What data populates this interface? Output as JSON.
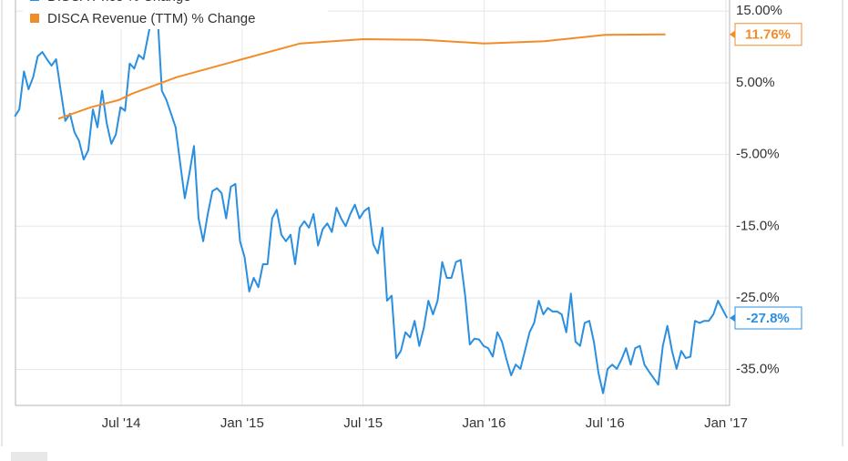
{
  "chart_data": {
    "type": "line",
    "ylim": [
      -40,
      16.56
    ],
    "yticks": [
      {
        "value": 15,
        "label": "15.00%"
      },
      {
        "value": 5,
        "label": "5.00%"
      },
      {
        "value": -5,
        "label": "-5.00%"
      },
      {
        "value": -15,
        "label": "-15.0%"
      },
      {
        "value": -25,
        "label": "-25.0%"
      },
      {
        "value": -35,
        "label": "-35.0%"
      }
    ],
    "xlim": [
      2014.063,
      2017.015
    ],
    "xticks": [
      {
        "value": 2014.5,
        "label": "Jul '14"
      },
      {
        "value": 2015.0,
        "label": "Jan '15"
      },
      {
        "value": 2015.5,
        "label": "Jul '15"
      },
      {
        "value": 2016.0,
        "label": "Jan '16"
      },
      {
        "value": 2016.5,
        "label": "Jul '16"
      },
      {
        "value": 2017.0,
        "label": "Jan '17"
      }
    ],
    "grid": true,
    "series": [
      {
        "name": "DISCA Price % Change",
        "color": "#2b8fe0",
        "end_label": "-27.8%",
        "x": [
          2014.06,
          2014.079,
          2014.098,
          2014.117,
          2014.136,
          2014.155,
          2014.174,
          2014.193,
          2014.212,
          2014.231,
          2014.25,
          2014.269,
          2014.288,
          2014.307,
          2014.326,
          2014.345,
          2014.364,
          2014.383,
          2014.402,
          2014.421,
          2014.44,
          2014.459,
          2014.478,
          2014.497,
          2014.516,
          2014.535,
          2014.554,
          2014.573,
          2014.592,
          2014.611,
          2014.63,
          2014.649,
          2014.668,
          2014.687,
          2014.706,
          2014.725,
          2014.744,
          2014.763,
          2014.782,
          2014.801,
          2014.82,
          2014.839,
          2014.858,
          2014.877,
          2014.896,
          2014.915,
          2014.934,
          2014.953,
          2014.972,
          2014.991,
          2015.01,
          2015.029,
          2015.048,
          2015.067,
          2015.086,
          2015.105,
          2015.124,
          2015.143,
          2015.162,
          2015.181,
          2015.2,
          2015.219,
          2015.238,
          2015.257,
          2015.276,
          2015.295,
          2015.314,
          2015.333,
          2015.352,
          2015.371,
          2015.39,
          2015.409,
          2015.428,
          2015.447,
          2015.466,
          2015.485,
          2015.504,
          2015.523,
          2015.542,
          2015.561,
          2015.58,
          2015.599,
          2015.618,
          2015.637,
          2015.656,
          2015.675,
          2015.694,
          2015.713,
          2015.732,
          2015.751,
          2015.77,
          2015.789,
          2015.808,
          2015.827,
          2015.846,
          2015.865,
          2015.884,
          2015.903,
          2015.922,
          2015.941,
          2015.96,
          2015.979,
          2015.998,
          2016.017,
          2016.036,
          2016.055,
          2016.074,
          2016.093,
          2016.112,
          2016.131,
          2016.15,
          2016.169,
          2016.188,
          2016.207,
          2016.226,
          2016.245,
          2016.264,
          2016.283,
          2016.302,
          2016.321,
          2016.34,
          2016.359,
          2016.378,
          2016.397,
          2016.416,
          2016.435,
          2016.454,
          2016.473,
          2016.492,
          2016.511,
          2016.53,
          2016.549,
          2016.568,
          2016.587,
          2016.606,
          2016.625,
          2016.644,
          2016.663,
          2016.682,
          2016.701,
          2016.72,
          2016.739,
          2016.758,
          2016.777,
          2016.796,
          2016.815,
          2016.834,
          2016.853,
          2016.872,
          2016.891,
          2016.91,
          2016.929,
          2016.948,
          2016.967,
          2016.986,
          2017.005
        ],
        "values": [
          0.3,
          1.3,
          6.6,
          4.1,
          5.8,
          8.7,
          9.3,
          8.3,
          7.4,
          8.3,
          3.9,
          -0.3,
          0.7,
          -1.9,
          -3.1,
          -5.7,
          -4.4,
          1.3,
          -1.2,
          3.9,
          -0.6,
          -3.5,
          -2.2,
          1.6,
          1.1,
          7.7,
          7.0,
          8.9,
          8.3,
          11.5,
          14.7,
          15.3,
          3.9,
          2.6,
          0.7,
          -1.2,
          -6.3,
          -11.1,
          -7.6,
          -3.8,
          -13.9,
          -17.1,
          -13.3,
          -10.1,
          -9.7,
          -10.4,
          -13.9,
          -9.5,
          -9.1,
          -17.1,
          -19.3,
          -24.1,
          -22.2,
          -23.5,
          -20.3,
          -20.3,
          -13.9,
          -12.7,
          -16.2,
          -17.1,
          -16.2,
          -20.3,
          -15.2,
          -14.3,
          -15.2,
          -13.3,
          -17.7,
          -15.4,
          -14.6,
          -15.8,
          -12.4,
          -13.9,
          -15.0,
          -13.3,
          -12.0,
          -13.9,
          -12.9,
          -12.4,
          -17.5,
          -18.8,
          -15.2,
          -25.4,
          -24.7,
          -33.4,
          -32.4,
          -29.8,
          -30.5,
          -28.2,
          -31.7,
          -29.2,
          -25.4,
          -27.3,
          -25.4,
          -20.0,
          -22.2,
          -22.2,
          -20.0,
          -19.7,
          -24.7,
          -31.5,
          -30.7,
          -30.8,
          -31.7,
          -32.0,
          -33.2,
          -29.8,
          -31.1,
          -33.6,
          -35.8,
          -34.3,
          -34.9,
          -32.4,
          -29.8,
          -28.5,
          -25.4,
          -27.3,
          -26.4,
          -26.9,
          -26.9,
          -27.3,
          -29.8,
          -24.4,
          -31.1,
          -31.7,
          -28.5,
          -28.2,
          -31.1,
          -35.5,
          -38.3,
          -34.9,
          -34.3,
          -34.9,
          -33.6,
          -32.0,
          -34.3,
          -32.0,
          -31.7,
          -34.3,
          -35.3,
          -36.2,
          -37.1,
          -31.7,
          -28.9,
          -32.4,
          -34.9,
          -32.4,
          -33.4,
          -33.2,
          -28.2,
          -28.5,
          -28.2,
          -28.2,
          -27.3,
          -25.4,
          -26.6,
          -27.8
        ]
      },
      {
        "name": "DISCA Revenue (TTM) % Change",
        "color": "#f28c28",
        "end_label": "11.76%",
        "x": [
          2014.24,
          2014.375,
          2014.49,
          2014.545,
          2014.73,
          2015.0,
          2015.24,
          2015.5,
          2015.75,
          2016.0,
          2016.25,
          2016.5,
          2016.75
        ],
        "values": [
          0.0,
          1.6,
          2.6,
          3.5,
          5.8,
          8.3,
          10.5,
          11.1,
          11.0,
          10.5,
          10.8,
          11.7,
          11.76
        ]
      }
    ]
  }
}
